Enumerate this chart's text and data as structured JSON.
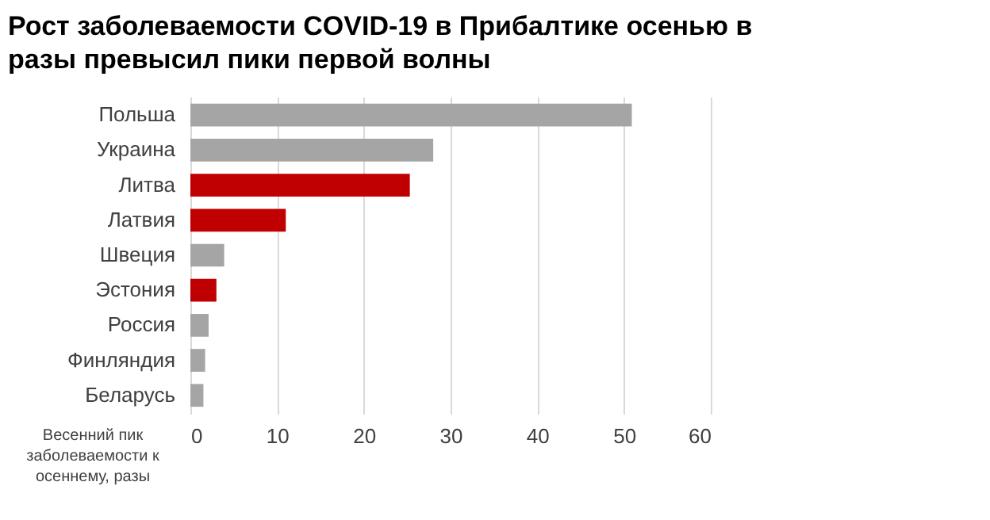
{
  "chart_data": {
    "type": "bar",
    "orientation": "horizontal",
    "title": "Рост заболеваемости COVID-19 в Прибалтике осенью в разы превысил пики первой волны",
    "xlabel": "Весенний пик заболеваемости к осеннему, разы",
    "categories": [
      "Польша",
      "Украина",
      "Литва",
      "Латвия",
      "Швеция",
      "Эстония",
      "Россия",
      "Финляндия",
      "Беларусь"
    ],
    "values": [
      50.9,
      28.0,
      25.3,
      11.0,
      3.9,
      3.0,
      2.1,
      1.7,
      1.5
    ],
    "colors": [
      "#a5a5a5",
      "#a5a5a5",
      "#c00000",
      "#c00000",
      "#a5a5a5",
      "#c00000",
      "#a5a5a5",
      "#a5a5a5",
      "#a5a5a5"
    ],
    "xlim": [
      0,
      60
    ],
    "xticks": [
      0,
      10,
      20,
      30,
      40,
      50,
      60
    ],
    "grid": "x"
  }
}
